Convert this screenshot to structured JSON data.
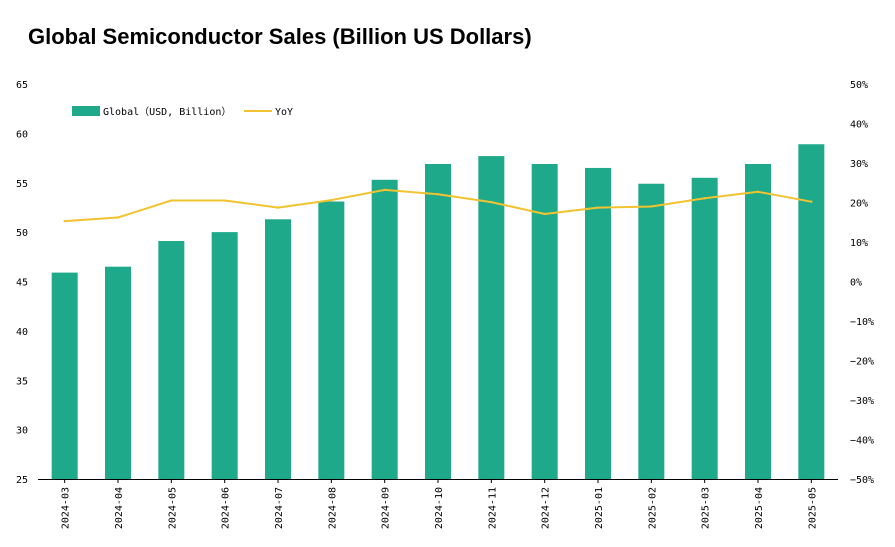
{
  "chart_data": {
    "type": "bar",
    "title": "Global Semiconductor Sales (Billion US Dollars)",
    "categories": [
      "2024-03",
      "2024-04",
      "2024-05",
      "2024-06",
      "2024-07",
      "2024-08",
      "2024-09",
      "2024-10",
      "2024-11",
      "2024-12",
      "2025-01",
      "2025-02",
      "2025-03",
      "2025-04",
      "2025-05"
    ],
    "series": [
      {
        "name": "Global（USD, Billion）",
        "type": "bar",
        "axis": "left",
        "color": "#1ea98a",
        "values": [
          45.9,
          46.5,
          49.1,
          50.0,
          51.3,
          53.1,
          55.3,
          56.9,
          57.7,
          56.9,
          56.5,
          54.9,
          55.5,
          56.9,
          58.9
        ]
      },
      {
        "name": "YoY",
        "type": "line",
        "axis": "right",
        "color": "#f2c330",
        "values": [
          15.3,
          16.2,
          20.5,
          20.5,
          18.7,
          20.6,
          23.2,
          22.1,
          20.1,
          17.1,
          18.7,
          19.0,
          21.1,
          22.7,
          20.2
        ]
      }
    ],
    "ylim_left": [
      25,
      65
    ],
    "yticks_left": [
      "65",
      "60",
      "55",
      "50",
      "45",
      "40",
      "35",
      "30",
      "25"
    ],
    "ylim_right": [
      -50,
      50
    ],
    "yticks_right": [
      "50%",
      "40%",
      "30%",
      "20%",
      "10%",
      "0%",
      "−10%",
      "−20%",
      "−30%",
      "−40%",
      "−50%"
    ],
    "legend": "top-left",
    "grid": false
  }
}
